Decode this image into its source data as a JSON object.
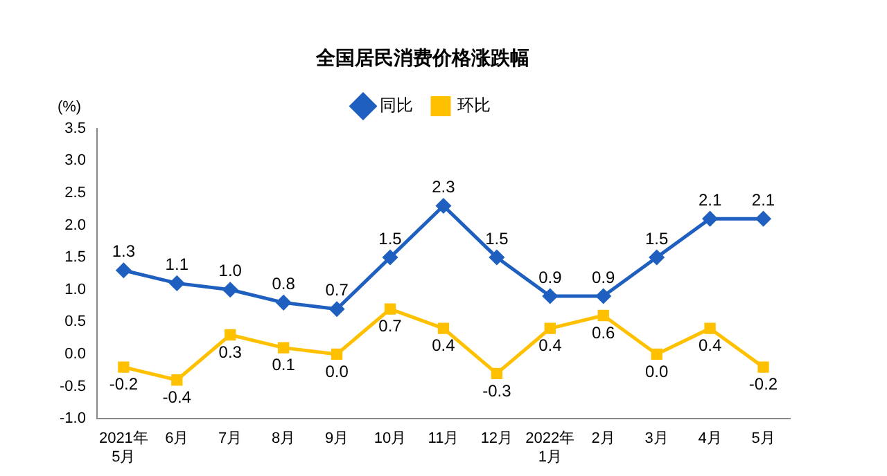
{
  "chart_data": {
    "type": "line",
    "title": "全国居民消费价格涨跌幅",
    "ylabel": "(%)",
    "categories": [
      "2021年\n5月",
      "6月",
      "7月",
      "8月",
      "9月",
      "10月",
      "11月",
      "12月",
      "2022年\n1月",
      "2月",
      "3月",
      "4月",
      "5月"
    ],
    "series": [
      {
        "name": "同比",
        "color": "#1f5fbf",
        "marker": "diamond",
        "values": [
          1.3,
          1.1,
          1.0,
          0.8,
          0.7,
          1.5,
          2.3,
          1.5,
          0.9,
          0.9,
          1.5,
          2.1,
          2.1
        ],
        "value_labels": [
          "1.3",
          "1.1",
          "1.0",
          "0.8",
          "0.7",
          "1.5",
          "2.3",
          "1.5",
          "0.9",
          "0.9",
          "1.5",
          "2.1",
          "2.1"
        ]
      },
      {
        "name": "环比",
        "color": "#ffc000",
        "marker": "square",
        "values": [
          -0.2,
          -0.4,
          0.3,
          0.1,
          0.0,
          0.7,
          0.4,
          -0.3,
          0.4,
          0.6,
          0.0,
          0.4,
          -0.2
        ],
        "value_labels": [
          "-0.2",
          "-0.4",
          "0.3",
          "0.1",
          "0.0",
          "0.7",
          "0.4",
          "-0.3",
          "0.4",
          "0.6",
          "0.0",
          "0.4",
          "-0.2"
        ]
      }
    ],
    "ylim": [
      -1,
      3.5
    ],
    "yticks": [
      {
        "value": -1,
        "label": "-1.0"
      },
      {
        "value": -0.5,
        "label": "-0.5"
      },
      {
        "value": 0,
        "label": "0.0"
      },
      {
        "value": 0.5,
        "label": "0.5"
      },
      {
        "value": 1,
        "label": "1.0"
      },
      {
        "value": 1.5,
        "label": "1.5"
      },
      {
        "value": 2,
        "label": "2.0"
      },
      {
        "value": 2.5,
        "label": "2.5"
      },
      {
        "value": 3,
        "label": "3.0"
      },
      {
        "value": 3.5,
        "label": "3.5"
      }
    ],
    "grid": false,
    "legend": "top",
    "line_style": "solid"
  }
}
